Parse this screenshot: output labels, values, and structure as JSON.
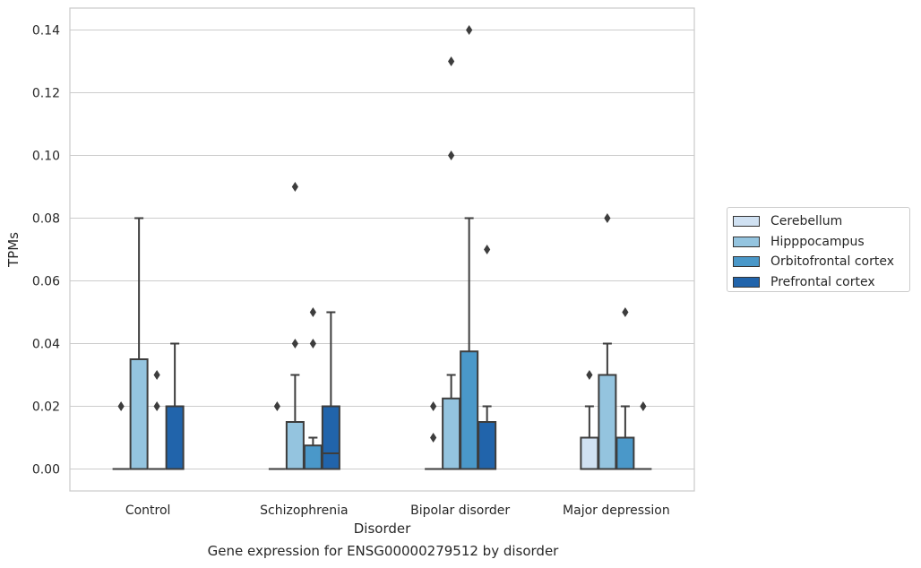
{
  "chart_data": {
    "type": "boxplot",
    "xlabel": "Disorder",
    "ylabel": "TPMs",
    "caption": "Gene expression for ENSG00000279512 by disorder",
    "ylim": [
      -0.007,
      0.147
    ],
    "yticks": [
      "0.00",
      "0.02",
      "0.04",
      "0.06",
      "0.08",
      "0.10",
      "0.12",
      "0.14"
    ],
    "categories": [
      "Control",
      "Schizophrenia",
      "Bipolar disorder",
      "Major depression"
    ],
    "grid": "horizontal",
    "legend_position": "right",
    "series": [
      {
        "name": "Cerebellum",
        "color": "#d0e1f2",
        "boxes": [
          {
            "q1": 0,
            "median": 0,
            "q3": 0,
            "whisker_low": 0,
            "whisker_high": 0,
            "outliers": [
              0.02
            ]
          },
          {
            "q1": 0,
            "median": 0,
            "q3": 0,
            "whisker_low": 0,
            "whisker_high": 0,
            "outliers": [
              0.02
            ]
          },
          {
            "q1": 0,
            "median": 0,
            "q3": 0,
            "whisker_low": 0,
            "whisker_high": 0,
            "outliers": [
              0.01,
              0.02
            ]
          },
          {
            "q1": 0,
            "median": 0,
            "q3": 0.01,
            "whisker_low": 0,
            "whisker_high": 0.02,
            "outliers": [
              0.03
            ]
          }
        ]
      },
      {
        "name": "Hipppocampus",
        "color": "#94c4df",
        "boxes": [
          {
            "q1": 0,
            "median": 0,
            "q3": 0.035,
            "whisker_low": 0,
            "whisker_high": 0.08,
            "outliers": []
          },
          {
            "q1": 0,
            "median": 0,
            "q3": 0.015,
            "whisker_low": 0,
            "whisker_high": 0.03,
            "outliers": [
              0.04,
              0.09
            ]
          },
          {
            "q1": 0,
            "median": 0,
            "q3": 0.0225,
            "whisker_low": 0,
            "whisker_high": 0.03,
            "outliers": [
              0.1,
              0.13
            ]
          },
          {
            "q1": 0,
            "median": 0,
            "q3": 0.03,
            "whisker_low": 0,
            "whisker_high": 0.04,
            "outliers": [
              0.08
            ]
          }
        ]
      },
      {
        "name": "Orbitofrontal cortex",
        "color": "#4a98c9",
        "boxes": [
          {
            "q1": 0,
            "median": 0,
            "q3": 0,
            "whisker_low": 0,
            "whisker_high": 0,
            "outliers": [
              0.02,
              0.03
            ]
          },
          {
            "q1": 0,
            "median": 0,
            "q3": 0.0075,
            "whisker_low": 0,
            "whisker_high": 0.01,
            "outliers": [
              0.04,
              0.05
            ]
          },
          {
            "q1": 0,
            "median": 0,
            "q3": 0.0375,
            "whisker_low": 0,
            "whisker_high": 0.08,
            "outliers": [
              0.14
            ]
          },
          {
            "q1": 0,
            "median": 0,
            "q3": 0.01,
            "whisker_low": 0,
            "whisker_high": 0.02,
            "outliers": [
              0.05
            ]
          }
        ]
      },
      {
        "name": "Prefrontal cortex",
        "color": "#2164ab",
        "boxes": [
          {
            "q1": 0,
            "median": 0,
            "q3": 0.02,
            "whisker_low": 0,
            "whisker_high": 0.04,
            "outliers": []
          },
          {
            "q1": 0,
            "median": 0.005,
            "q3": 0.02,
            "whisker_low": 0,
            "whisker_high": 0.05,
            "outliers": []
          },
          {
            "q1": 0,
            "median": 0,
            "q3": 0.015,
            "whisker_low": 0,
            "whisker_high": 0.02,
            "outliers": [
              0.07
            ]
          },
          {
            "q1": 0,
            "median": 0,
            "q3": 0,
            "whisker_low": 0,
            "whisker_high": 0,
            "outliers": [
              0.02
            ]
          }
        ]
      }
    ]
  }
}
